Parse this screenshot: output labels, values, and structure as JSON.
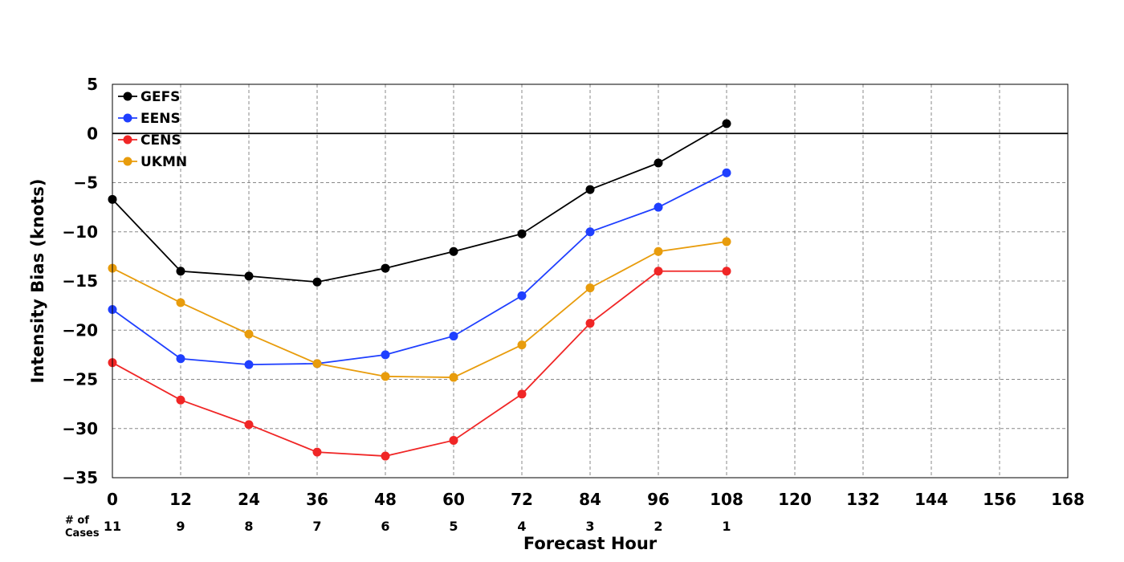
{
  "chart_data": {
    "type": "line",
    "xlabel": "Forecast Hour",
    "ylabel": "Intensity Bias (knots)",
    "xlim": [
      0,
      168
    ],
    "ylim": [
      -35,
      5
    ],
    "xticks": [
      0,
      12,
      24,
      36,
      48,
      60,
      72,
      84,
      96,
      108,
      120,
      132,
      144,
      156,
      168
    ],
    "yticks": [
      5,
      0,
      -5,
      -10,
      -15,
      -20,
      -25,
      -30,
      -35
    ],
    "ytick_labels": [
      "5",
      "0",
      "−5",
      "−10",
      "−15",
      "−20",
      "−25",
      "−30",
      "−35"
    ],
    "grid": true,
    "zero_line": true,
    "legend_position": "top-left",
    "cases_title": [
      "# of",
      "Cases"
    ],
    "cases": [
      {
        "x": 0,
        "n": "11"
      },
      {
        "x": 12,
        "n": "9"
      },
      {
        "x": 24,
        "n": "8"
      },
      {
        "x": 36,
        "n": "7"
      },
      {
        "x": 48,
        "n": "6"
      },
      {
        "x": 60,
        "n": "5"
      },
      {
        "x": 72,
        "n": "4"
      },
      {
        "x": 84,
        "n": "3"
      },
      {
        "x": 96,
        "n": "2"
      },
      {
        "x": 108,
        "n": "1"
      }
    ],
    "x": [
      0,
      12,
      24,
      36,
      48,
      60,
      72,
      84,
      96,
      108
    ],
    "series": [
      {
        "name": "GEFS",
        "color": "#000000",
        "values": [
          -6.7,
          -14.0,
          -14.5,
          -15.1,
          -13.7,
          -12.0,
          -10.2,
          -5.7,
          -3.0,
          1.0
        ]
      },
      {
        "name": "EENS",
        "color": "#1f3fff",
        "values": [
          -17.9,
          -22.9,
          -23.5,
          -23.4,
          -22.5,
          -20.6,
          -16.5,
          -10.0,
          -7.5,
          -4.0
        ]
      },
      {
        "name": "CENS",
        "color": "#f02626",
        "values": [
          -23.3,
          -27.1,
          -29.6,
          -32.4,
          -32.8,
          -31.2,
          -26.5,
          -19.3,
          -14.0,
          -14.0
        ]
      },
      {
        "name": "UKMN",
        "color": "#e89c0c",
        "values": [
          -13.7,
          -17.2,
          -20.4,
          -23.4,
          -24.7,
          -24.8,
          -21.5,
          -15.7,
          -12.0,
          -11.0
        ]
      }
    ]
  }
}
